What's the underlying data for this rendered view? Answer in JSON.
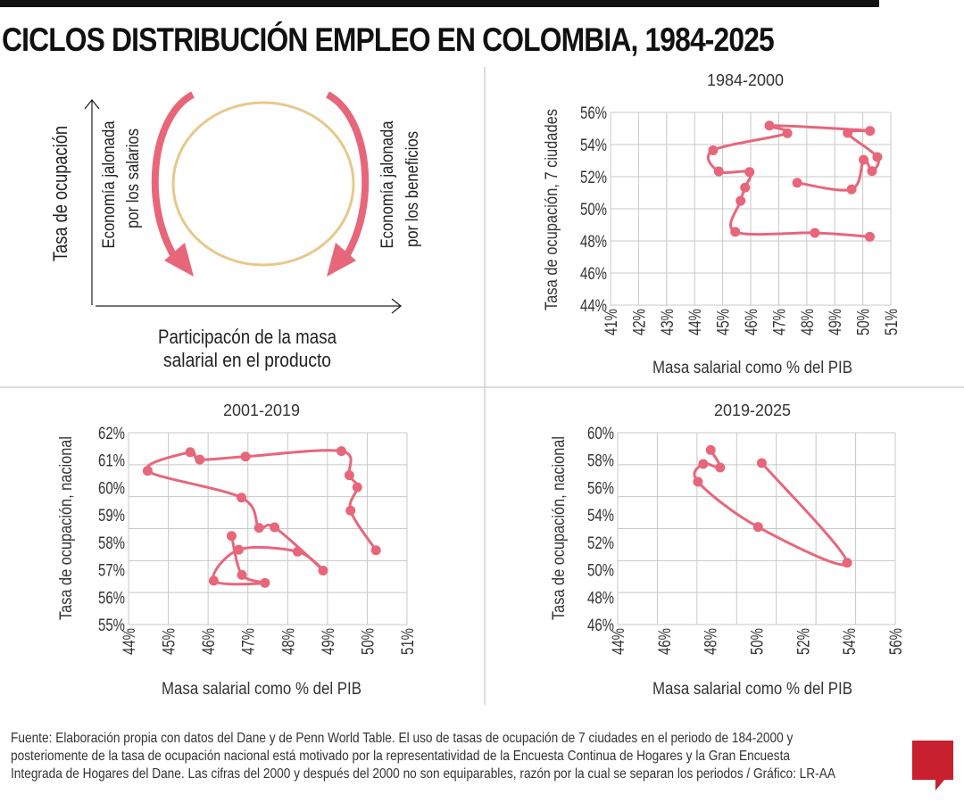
{
  "title": "CICLOS DISTRIBUCIÓN EMPLEO EN COLOMBIA, 1984-2025",
  "colors": {
    "series": "#e8667a",
    "cycle": "#e8c88a",
    "grid": "#c8c8c8",
    "logo": "#c8202f"
  },
  "diagram": {
    "y_axis_label": "Tasa de ocupación",
    "x_axis_label_line1": "Participacón de la masa",
    "x_axis_label_line2": "salarial en el producto",
    "left_label_line1": "Economía jalonada",
    "left_label_line2": "por los salarios",
    "right_label_line1": "Economía jalonada",
    "right_label_line2": "por los beneficios",
    "icons": [
      "arrow-up-icon",
      "arrow-right-icon",
      "curved-arrow-down-icon",
      "cycle-circle"
    ]
  },
  "chart_data": [
    {
      "type": "line",
      "title": "1984-2000",
      "xlabel": "Masa salarial como % del PIB",
      "ylabel": "Tasa de ocupación, 7 ciudades",
      "xlim": [
        41,
        51
      ],
      "ylim": [
        44,
        56
      ],
      "xticks": [
        "41%",
        "42%",
        "43%",
        "44%",
        "45%",
        "46%",
        "47%",
        "48%",
        "49%",
        "50%",
        "51%"
      ],
      "xtick_values": [
        41,
        42,
        43,
        44,
        45,
        46,
        47,
        48,
        49,
        50,
        51
      ],
      "yticks": [
        "44%",
        "46%",
        "48%",
        "50%",
        "52%",
        "54%",
        "56%"
      ],
      "ytick_values": [
        44,
        46,
        48,
        50,
        52,
        54,
        56
      ],
      "grid": true,
      "points": [
        [
          50.25,
          48.26
        ],
        [
          48.29,
          48.5
        ],
        [
          45.45,
          48.56
        ],
        [
          45.64,
          50.49
        ],
        [
          45.8,
          51.32
        ],
        [
          45.96,
          52.29
        ],
        [
          44.86,
          52.33
        ],
        [
          44.66,
          53.64
        ],
        [
          47.31,
          54.7
        ],
        [
          46.67,
          55.18
        ],
        [
          50.26,
          54.85
        ],
        [
          49.46,
          54.72
        ],
        [
          50.52,
          53.22
        ],
        [
          50.33,
          52.35
        ],
        [
          50.03,
          53.05
        ],
        [
          49.6,
          51.21
        ],
        [
          47.66,
          51.62
        ]
      ]
    },
    {
      "type": "line",
      "title": "2001-2019",
      "xlabel": "Masa salarial como % del PIB",
      "ylabel": "Tasa de ocupación, nacional",
      "xlim": [
        44,
        51
      ],
      "ylim": [
        55,
        62
      ],
      "xticks": [
        "44%",
        "45%",
        "46%",
        "47%",
        "48%",
        "49%",
        "50%",
        "51%"
      ],
      "xtick_values": [
        44,
        45,
        46,
        47,
        48,
        49,
        50,
        51
      ],
      "yticks": [
        "55%",
        "56%",
        "57%",
        "58%",
        "59%",
        "60%",
        "61%",
        "62%"
      ],
      "ytick_values": [
        55,
        56,
        57,
        58,
        59,
        60,
        61,
        62
      ],
      "grid": true,
      "points": [
        [
          50.22,
          57.71
        ],
        [
          49.58,
          59.16
        ],
        [
          49.75,
          60.01
        ],
        [
          49.55,
          60.45
        ],
        [
          49.35,
          61.33
        ],
        [
          46.94,
          61.13
        ],
        [
          45.79,
          61.02
        ],
        [
          45.55,
          61.29
        ],
        [
          44.48,
          60.61
        ],
        [
          46.84,
          59.63
        ],
        [
          47.28,
          58.53
        ],
        [
          47.67,
          58.55
        ],
        [
          48.89,
          56.97
        ],
        [
          48.25,
          57.66
        ],
        [
          46.77,
          57.73
        ],
        [
          46.14,
          56.6
        ],
        [
          47.43,
          56.52
        ],
        [
          46.85,
          56.81
        ],
        [
          46.59,
          58.23
        ]
      ]
    },
    {
      "type": "line",
      "title": "2019-2025",
      "xlabel": "Masa salarial como % del PIB",
      "ylabel": "Tasa de ocupación, nacional",
      "xlim": [
        44,
        56
      ],
      "ylim": [
        46,
        60
      ],
      "xticks": [
        "44%",
        "46%",
        "48%",
        "50%",
        "52%",
        "54%",
        "56%"
      ],
      "xtick_values": [
        44,
        46,
        48,
        50,
        52,
        54,
        56
      ],
      "yticks": [
        "46%",
        "48%",
        "50%",
        "52%",
        "54%",
        "56%",
        "58%",
        "60%"
      ],
      "ytick_values": [
        46,
        48,
        50,
        52,
        54,
        56,
        58,
        60
      ],
      "grid": true,
      "points": [
        [
          50.23,
          57.79
        ],
        [
          53.92,
          50.51
        ],
        [
          50.07,
          53.12
        ],
        [
          47.47,
          56.42
        ],
        [
          47.7,
          57.72
        ],
        [
          48.43,
          57.46
        ],
        [
          48.02,
          58.74
        ]
      ]
    }
  ],
  "footer": {
    "line1": "Fuente: Elaboración propia con datos del Dane y de Penn World Table. El uso de tasas de ocupación de 7 ciudades en el periodo de 184-2000 y",
    "line2": "posteriomente de la tasa de ocupación nacional está motivado por la representatividad de la Encuesta Continua de Hogares y la Gran Encuesta",
    "line3": "Integrada de Hogares del Dane. Las cifras del 2000 y después del 2000 no son equiparables, razón por la cual se separan los periodos / Gráfico: LR-AA"
  },
  "logo": "LR"
}
